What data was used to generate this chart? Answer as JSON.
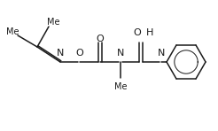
{
  "background_color": "#ffffff",
  "figsize": [
    2.46,
    1.48
  ],
  "dpi": 100,
  "line_color": "#1a1a1a",
  "line_width": 1.1,
  "xlim": [
    0,
    246
  ],
  "ylim": [
    0,
    148
  ]
}
